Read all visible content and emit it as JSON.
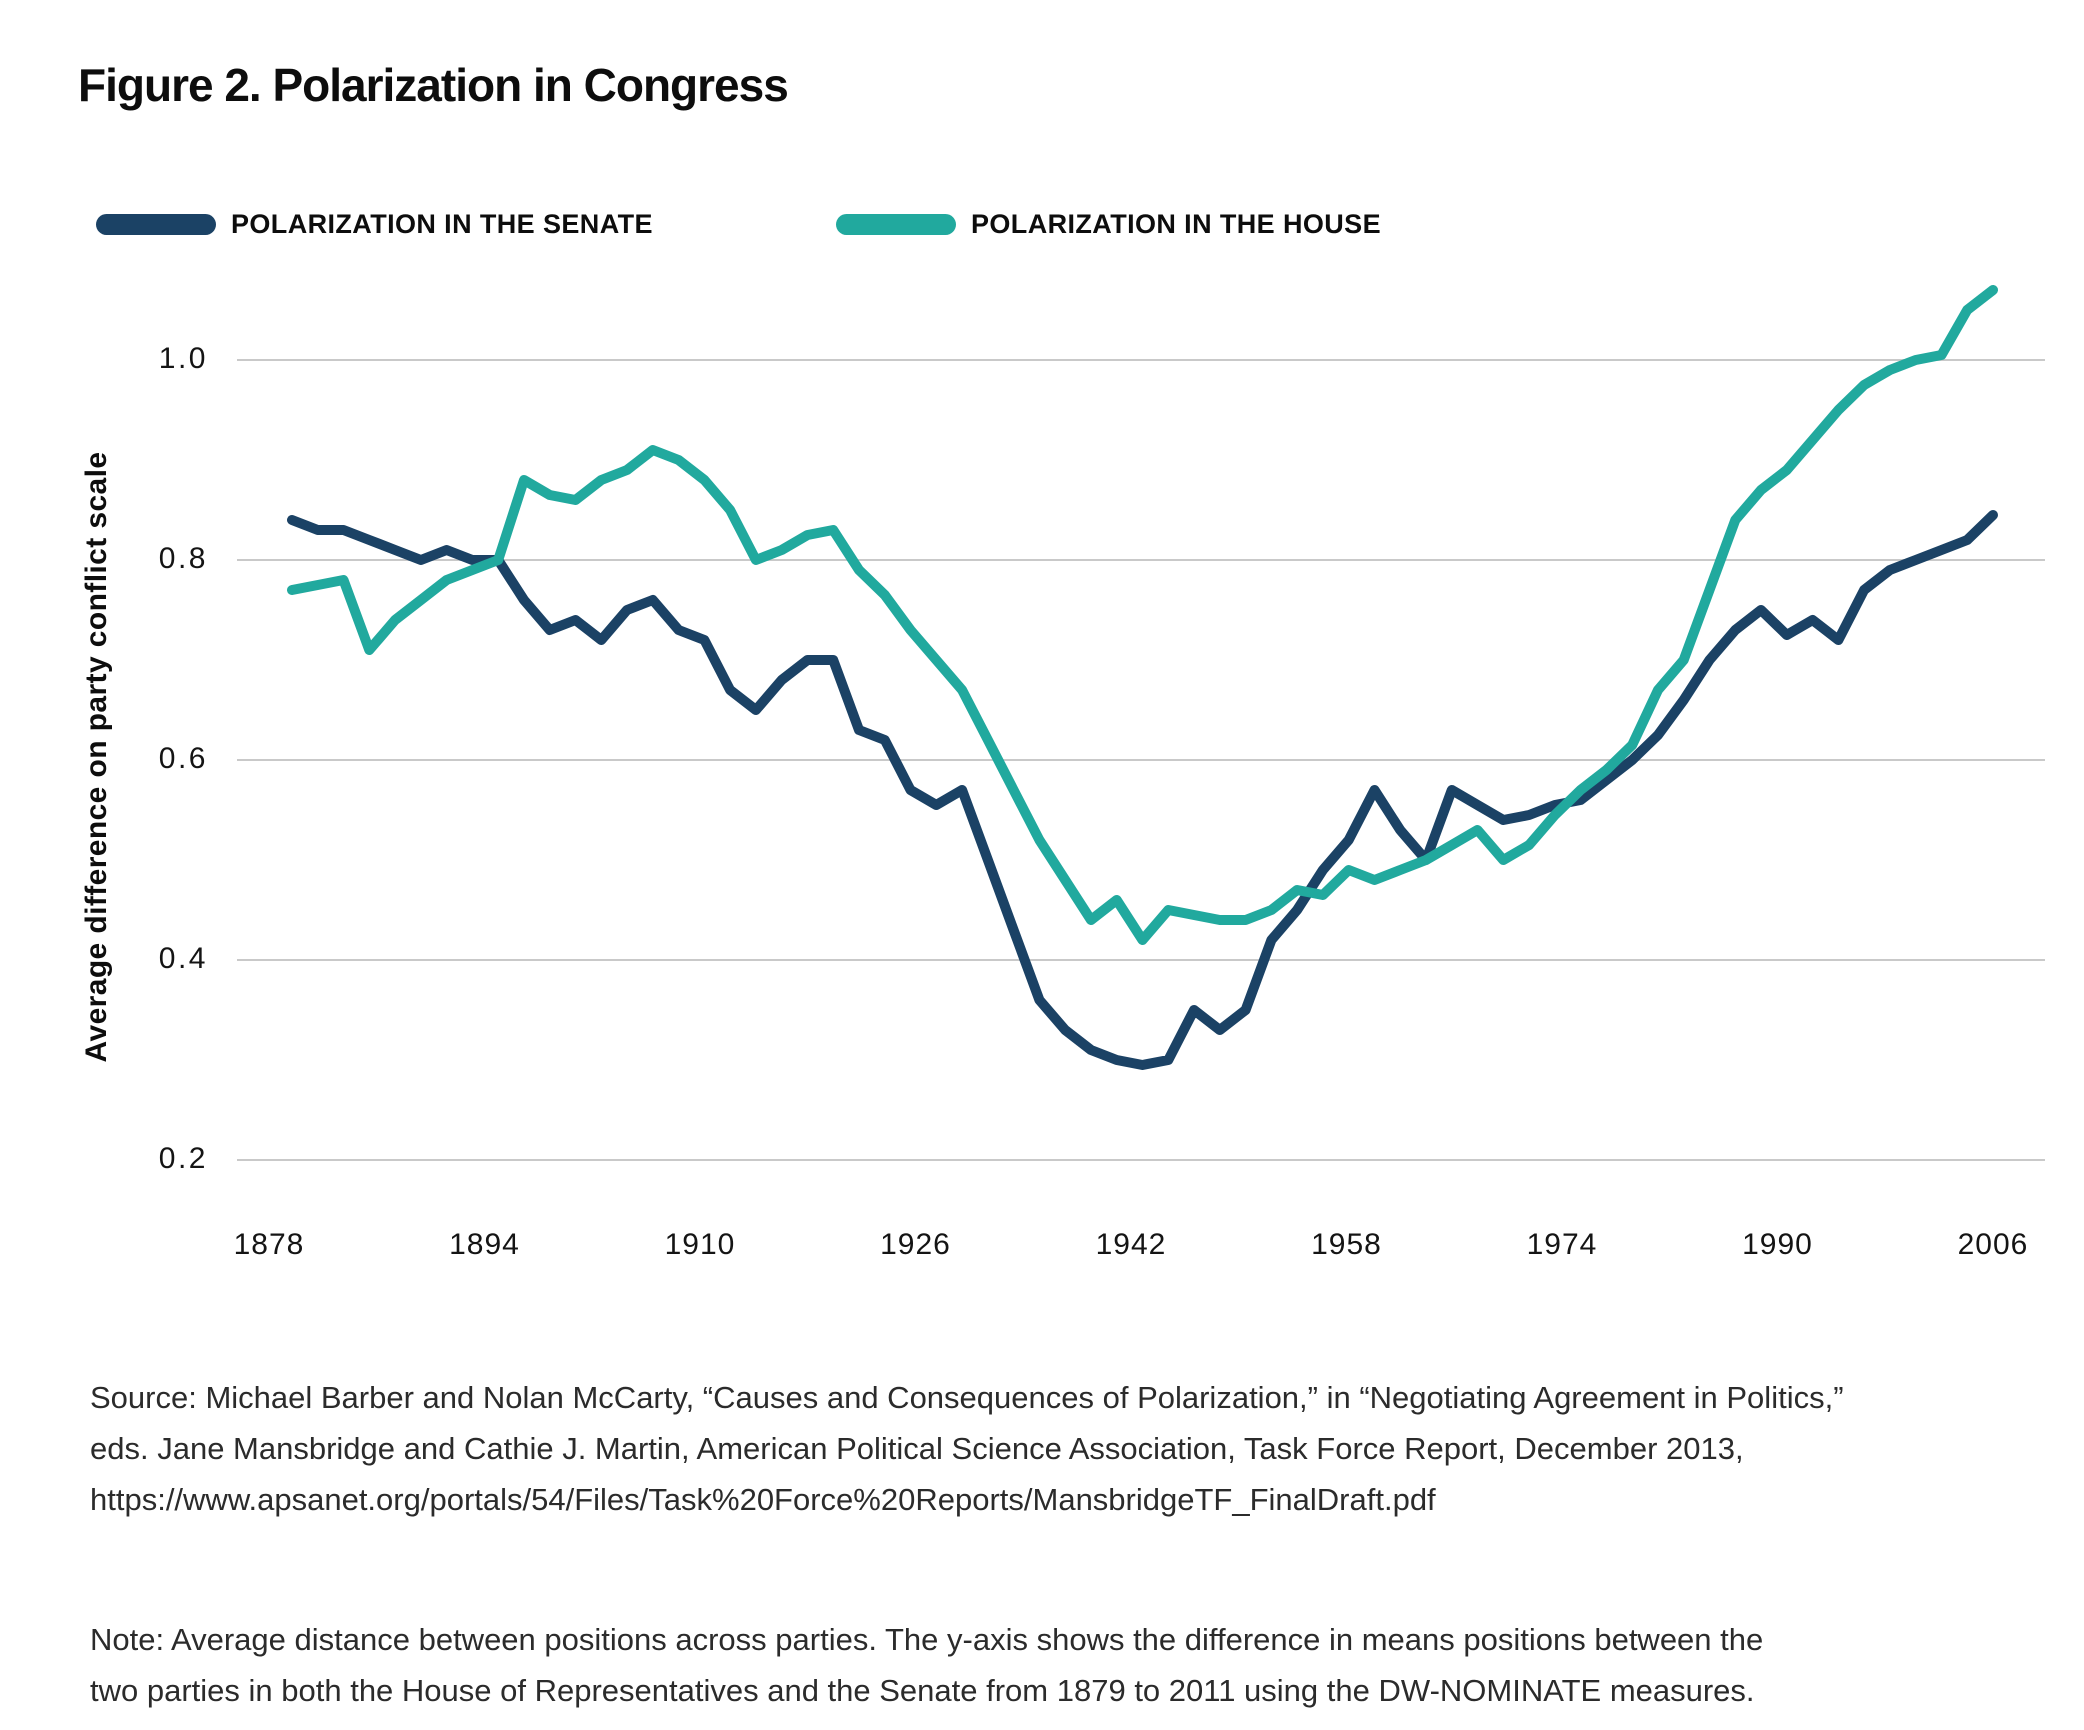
{
  "title": "Figure 2. Polarization in Congress",
  "legend": {
    "items": [
      {
        "label": "POLARIZATION IN THE SENATE",
        "color": "#1b4265"
      },
      {
        "label": "POLARIZATION IN THE HOUSE",
        "color": "#21a99e"
      }
    ]
  },
  "source_lines": [
    "Source: Michael Barber and Nolan McCarty, “Causes and Consequences of Polarization,” in “Negotiating Agreement in Politics,”",
    "eds. Jane Mansbridge and Cathie J. Martin, American Political Science Association, Task Force Report, December 2013,",
    "https://www.apsanet.org/portals/54/Files/Task%20Force%20Reports/MansbridgeTF_FinalDraft.pdf"
  ],
  "note_lines": [
    "Note: Average distance between positions across parties. The y-axis shows the difference in means positions between the",
    "two parties in both the House of Representatives and the Senate from 1879 to 2011 using the DW-NOMINATE measures."
  ],
  "colors": {
    "senate": "#1b4265",
    "house": "#21a99e",
    "gridline": "#c9c9c9",
    "text": "#0d0d0d"
  },
  "chart_data": {
    "type": "line",
    "title": "Figure 2. Polarization in Congress",
    "xlabel": "",
    "ylabel": "Average difference on party conflict scale",
    "grid": "horizontal",
    "legend_position": "top",
    "ylim": [
      0.2,
      1.0
    ],
    "y_tick_values": [
      1.0,
      0.8,
      0.6,
      0.4,
      0.2
    ],
    "y_ticks": [
      "1.0",
      "0.8",
      "0.6",
      "0.4",
      "0.2"
    ],
    "x_ticks": [
      "1878",
      "1894",
      "1910",
      "1926",
      "1942",
      "1958",
      "1974",
      "1990",
      "2006"
    ],
    "x": [
      1879,
      1881,
      1883,
      1885,
      1887,
      1889,
      1891,
      1893,
      1895,
      1897,
      1899,
      1901,
      1903,
      1905,
      1907,
      1909,
      1911,
      1913,
      1915,
      1917,
      1919,
      1921,
      1923,
      1925,
      1927,
      1929,
      1931,
      1933,
      1935,
      1937,
      1939,
      1941,
      1943,
      1945,
      1947,
      1949,
      1951,
      1953,
      1955,
      1957,
      1959,
      1961,
      1963,
      1965,
      1967,
      1969,
      1971,
      1973,
      1975,
      1977,
      1979,
      1981,
      1983,
      1985,
      1987,
      1989,
      1991,
      1993,
      1995,
      1997,
      1999,
      2001,
      2003,
      2005,
      2007,
      2009,
      2011
    ],
    "series": [
      {
        "name": "POLARIZATION IN THE SENATE",
        "color": "#1b4265",
        "values": [
          0.84,
          0.83,
          0.83,
          0.82,
          0.81,
          0.8,
          0.81,
          0.8,
          0.8,
          0.76,
          0.73,
          0.74,
          0.72,
          0.75,
          0.76,
          0.73,
          0.72,
          0.67,
          0.65,
          0.68,
          0.7,
          0.7,
          0.63,
          0.62,
          0.57,
          0.555,
          0.57,
          0.5,
          0.43,
          0.36,
          0.33,
          0.31,
          0.3,
          0.295,
          0.3,
          0.35,
          0.33,
          0.35,
          0.42,
          0.45,
          0.49,
          0.52,
          0.57,
          0.53,
          0.5,
          0.57,
          0.555,
          0.54,
          0.545,
          0.555,
          0.56,
          0.58,
          0.6,
          0.625,
          0.66,
          0.7,
          0.73,
          0.75,
          0.725,
          0.74,
          0.72,
          0.77,
          0.79,
          0.8,
          0.81,
          0.82,
          0.845
        ]
      },
      {
        "name": "POLARIZATION IN THE HOUSE",
        "color": "#21a99e",
        "values": [
          0.77,
          0.775,
          0.78,
          0.71,
          0.74,
          0.76,
          0.78,
          0.79,
          0.8,
          0.88,
          0.865,
          0.86,
          0.88,
          0.89,
          0.91,
          0.9,
          0.88,
          0.85,
          0.8,
          0.81,
          0.825,
          0.83,
          0.79,
          0.765,
          0.73,
          0.7,
          0.67,
          0.62,
          0.57,
          0.52,
          0.48,
          0.44,
          0.46,
          0.42,
          0.45,
          0.445,
          0.44,
          0.44,
          0.45,
          0.47,
          0.465,
          0.49,
          0.48,
          0.49,
          0.5,
          0.515,
          0.53,
          0.5,
          0.515,
          0.545,
          0.57,
          0.59,
          0.615,
          0.67,
          0.7,
          0.77,
          0.84,
          0.87,
          0.89,
          0.92,
          0.95,
          0.975,
          0.99,
          1.0,
          1.005,
          1.05,
          1.07
        ]
      }
    ]
  }
}
